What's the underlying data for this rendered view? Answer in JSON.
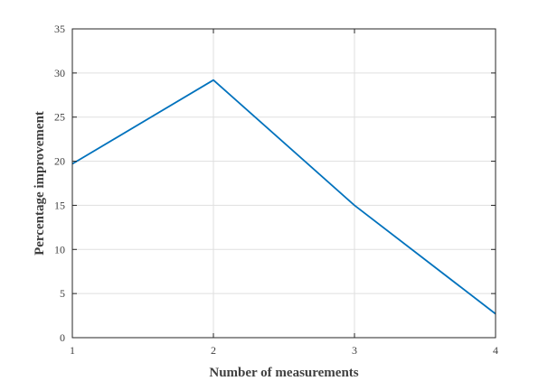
{
  "chart_data": {
    "type": "line",
    "xlabel": "Number of measurements",
    "ylabel": "Percentage improvement",
    "xlim": [
      1,
      4
    ],
    "ylim": [
      0,
      35
    ],
    "xticks": [
      1,
      2,
      3,
      4
    ],
    "yticks": [
      0,
      5,
      10,
      15,
      20,
      25,
      30,
      35
    ],
    "grid": true,
    "series": [
      {
        "x": [
          1,
          2,
          3,
          4
        ],
        "y": [
          19.7,
          29.2,
          15.0,
          2.7
        ],
        "color": "#0072BD"
      }
    ]
  }
}
